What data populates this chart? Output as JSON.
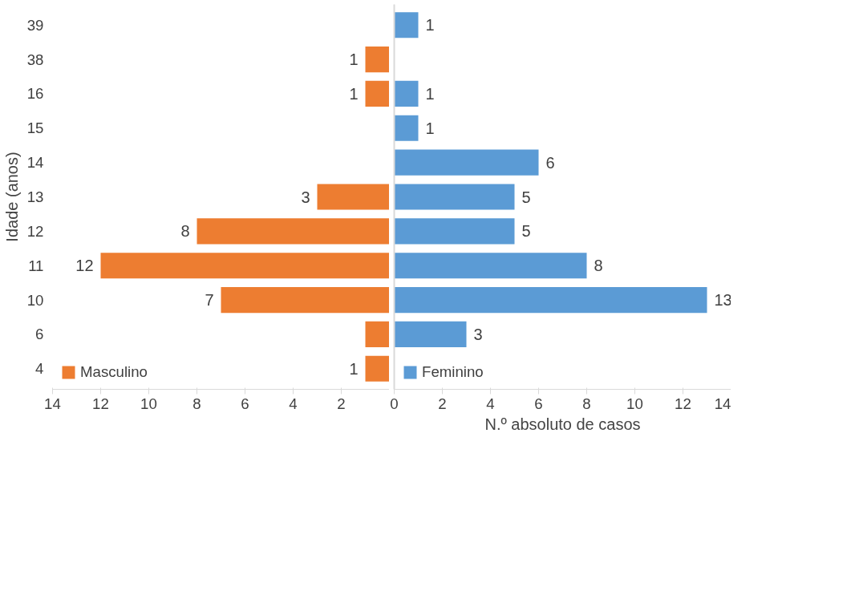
{
  "chart_data": [
    {
      "type": "bar",
      "orientation": "horizontal",
      "ylabel": "Idade (anos)",
      "categories": [
        "39",
        "38",
        "16",
        "15",
        "14",
        "13",
        "12",
        "11",
        "10",
        "6",
        "4"
      ],
      "series": [
        {
          "name": "Masculino",
          "color": "#ed7d31",
          "values": [
            null,
            1,
            1,
            null,
            null,
            3,
            8,
            12,
            7,
            1,
            1
          ],
          "value_labels": [
            null,
            "1",
            "1",
            null,
            null,
            "3",
            "8",
            "12",
            "7",
            null,
            "1"
          ]
        }
      ],
      "xlim": [
        14,
        0
      ],
      "xticks": [
        14,
        12,
        10,
        8,
        6,
        4,
        2
      ],
      "legend": "bottom"
    },
    {
      "type": "bar",
      "orientation": "horizontal",
      "xlabel": "N.º absoluto de casos",
      "categories": [
        "39",
        "38",
        "16",
        "15",
        "14",
        "13",
        "12",
        "11",
        "10",
        "6",
        "4"
      ],
      "series": [
        {
          "name": "Feminino",
          "color": "#5b9bd5",
          "values": [
            1,
            null,
            1,
            1,
            6,
            5,
            5,
            8,
            13,
            3,
            null
          ],
          "data_labels": true
        }
      ],
      "xlim": [
        0,
        14
      ],
      "xticks": [
        0,
        2,
        4,
        6,
        8,
        10,
        12,
        14
      ],
      "tick_labels": "x",
      "legend": "bottom"
    }
  ]
}
